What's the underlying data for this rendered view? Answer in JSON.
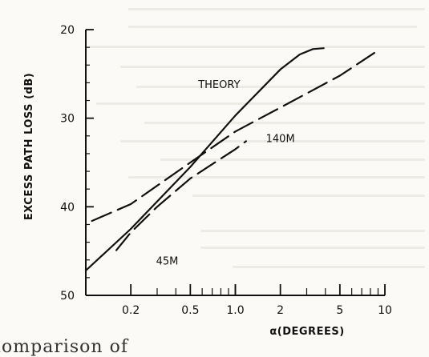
{
  "chart_data": {
    "type": "line",
    "title": "",
    "xlabel": "α(DEGREES)",
    "ylabel": "EXCESS PATH LOSS (dB)",
    "xscale": "log",
    "xlim": [
      0.1,
      10
    ],
    "ylim": [
      50,
      20
    ],
    "y_axis_inverted": true,
    "x_ticks": [
      {
        "value": 0.2,
        "label": "0.2"
      },
      {
        "value": 0.5,
        "label": "0.5"
      },
      {
        "value": 1.0,
        "label": "1.0"
      },
      {
        "value": 2,
        "label": "2"
      },
      {
        "value": 5,
        "label": "5"
      },
      {
        "value": 10,
        "label": "10"
      }
    ],
    "y_ticks": [
      {
        "value": 20,
        "label": "20"
      },
      {
        "value": 30,
        "label": "30"
      },
      {
        "value": 40,
        "label": "40"
      },
      {
        "value": 50,
        "label": "50"
      }
    ],
    "grid": false,
    "series": [
      {
        "name": "THEORY",
        "style": "solid",
        "x": [
          0.1,
          0.2,
          0.5,
          1.0,
          2,
          2.7,
          3.3,
          3.9
        ],
        "y": [
          47.2,
          42.5,
          35.5,
          29.7,
          24.5,
          22.8,
          22.2,
          22.1
        ]
      },
      {
        "name": "140M",
        "style": "dashed",
        "x": [
          0.11,
          0.2,
          0.5,
          1.0,
          2,
          5,
          9.3
        ],
        "y": [
          41.6,
          39.7,
          35.0,
          31.5,
          28.8,
          25.2,
          22.2
        ]
      },
      {
        "name": "45M",
        "style": "dashed",
        "x": [
          0.16,
          0.2,
          0.3,
          0.5,
          1.0,
          1.18
        ],
        "y": [
          44.9,
          42.9,
          40.0,
          36.8,
          33.5,
          32.6
        ]
      }
    ],
    "annotations": [
      {
        "text": "THEORY",
        "series": "THEORY"
      },
      {
        "text": "140M",
        "series": "140M"
      },
      {
        "text": "45M",
        "series": "45M"
      }
    ]
  },
  "caption": "lomparison of"
}
